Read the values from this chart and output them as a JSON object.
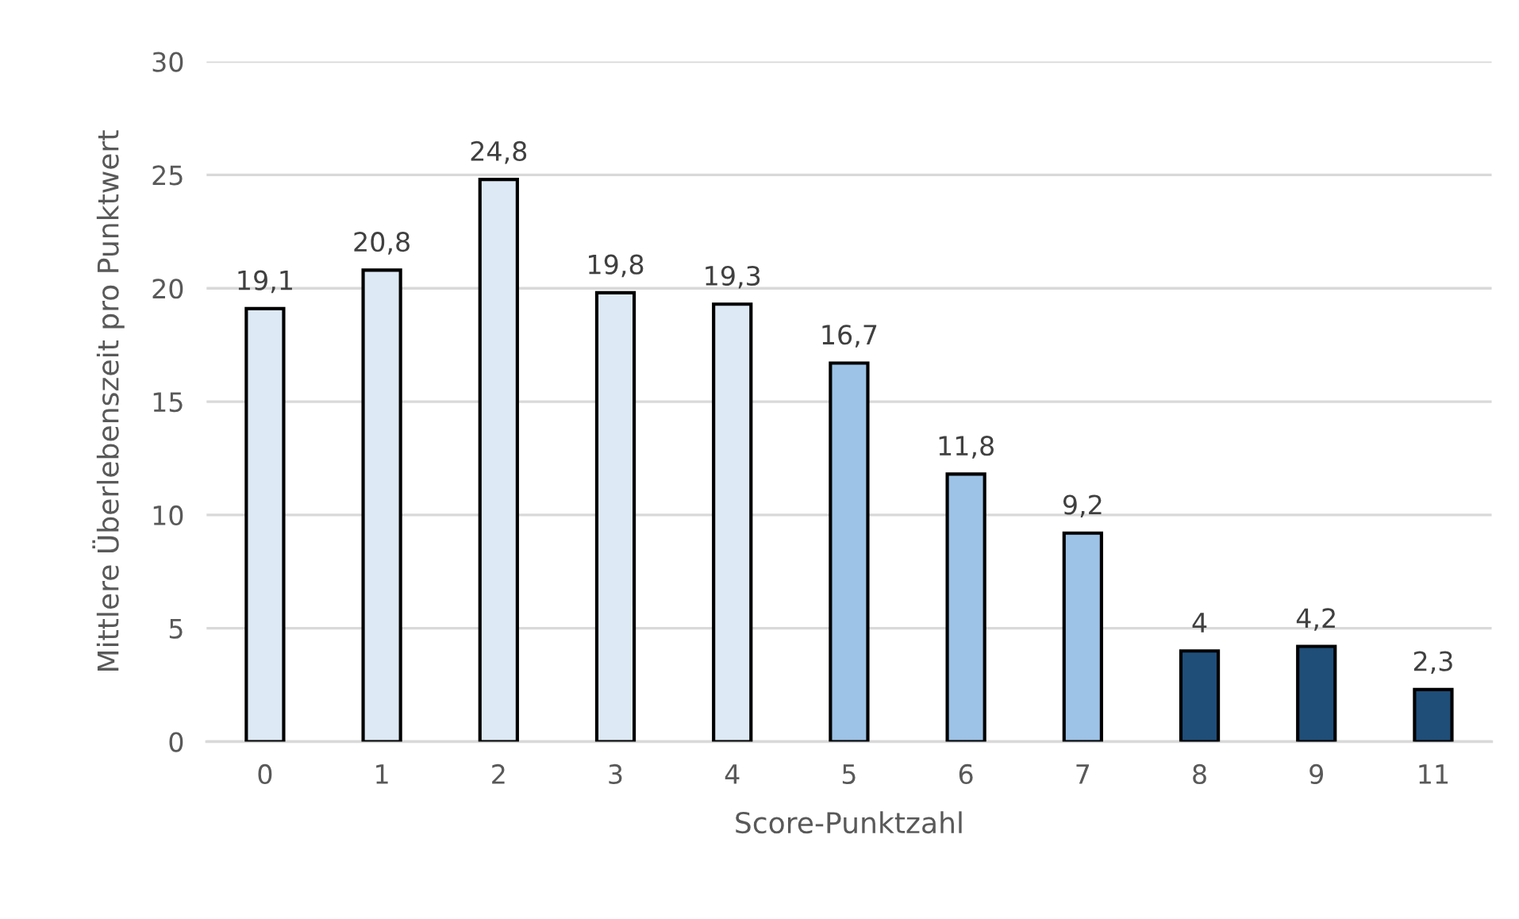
{
  "chart_data": {
    "type": "bar",
    "xlabel": "Score-Punktzahl",
    "ylabel": "Mittlere Überlebenszeit pro Punktwert",
    "categories": [
      "0",
      "1",
      "2",
      "3",
      "4",
      "5",
      "6",
      "7",
      "8",
      "9",
      "11"
    ],
    "values": [
      19.1,
      20.8,
      24.8,
      19.8,
      19.3,
      16.7,
      11.8,
      9.2,
      4,
      4.2,
      2.3
    ],
    "value_labels": [
      "19,1",
      "20,8",
      "24,8",
      "19,8",
      "19,3",
      "16,7",
      "11,8",
      "9,2",
      "4",
      "4,2",
      "2,3"
    ],
    "colors": [
      "#dde9f5",
      "#dde9f5",
      "#dde9f5",
      "#dde9f5",
      "#dde9f5",
      "#9dc3e6",
      "#9dc3e6",
      "#9dc3e6",
      "#1f4e79",
      "#1f4e79",
      "#1f4e79"
    ],
    "ylim": [
      0,
      30
    ],
    "yticks": [
      0,
      5,
      10,
      15,
      20,
      25,
      30
    ],
    "grid": "y"
  }
}
